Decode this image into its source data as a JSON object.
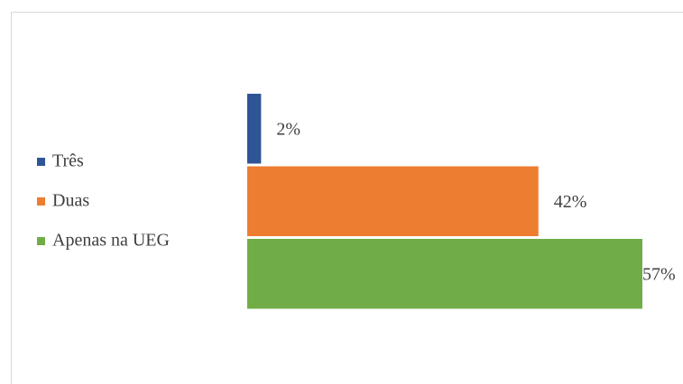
{
  "chart_data": {
    "type": "bar",
    "orientation": "horizontal",
    "categories": [
      "Três",
      "Duas",
      "Apenas na UEG"
    ],
    "values": [
      2,
      42,
      57
    ],
    "value_labels": [
      "2%",
      "42%",
      "57%"
    ],
    "colors": [
      "#2f5597",
      "#ed7d31",
      "#70ad47"
    ],
    "legend": "left"
  }
}
